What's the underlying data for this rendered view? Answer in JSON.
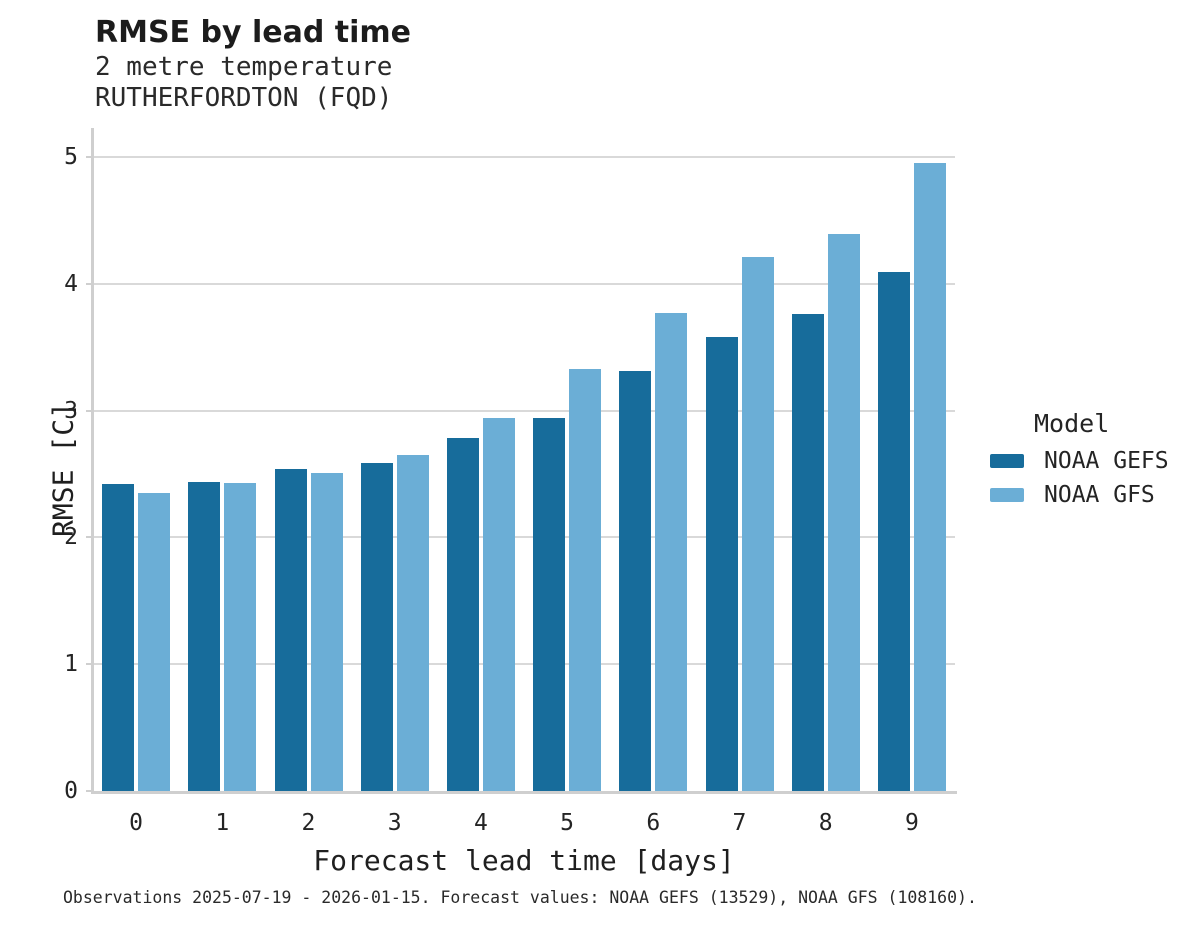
{
  "chart_data": {
    "type": "bar",
    "title": "RMSE by lead time",
    "subtitle_line1": "2 metre temperature",
    "subtitle_line2": "RUTHERFORDTON (FQD)",
    "xlabel": "Forecast lead time [days]",
    "ylabel": "RMSE [C]",
    "categories": [
      "0",
      "1",
      "2",
      "3",
      "4",
      "5",
      "6",
      "7",
      "8",
      "9"
    ],
    "series": [
      {
        "name": "NOAA GEFS",
        "color": "#176C9B",
        "values": [
          2.42,
          2.44,
          2.54,
          2.59,
          2.78,
          2.94,
          3.31,
          3.58,
          3.76,
          4.09
        ]
      },
      {
        "name": "NOAA GFS",
        "color": "#6BAED6",
        "values": [
          2.35,
          2.43,
          2.51,
          2.65,
          2.94,
          3.33,
          3.77,
          4.21,
          4.39,
          4.95
        ]
      }
    ],
    "ylim": [
      0,
      5
    ],
    "yticks": [
      0,
      1,
      2,
      3,
      4,
      5
    ],
    "grid": true,
    "legend": {
      "title": "Model",
      "position": "right"
    },
    "caption": "Observations 2025-07-19 - 2026-01-15. Forecast values: NOAA GEFS (13529), NOAA GFS (108160)."
  },
  "colors": {
    "grid": "#d9d9d9",
    "axis": "#cfcfcf",
    "bar_dark": "#176C9B",
    "bar_light": "#6BAED6"
  }
}
